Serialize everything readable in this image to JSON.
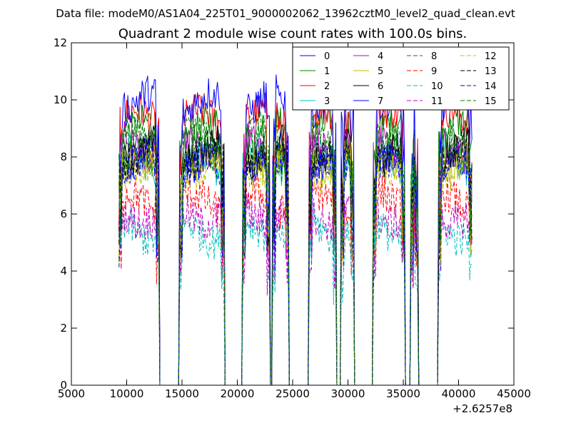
{
  "header": {
    "data_file": "Data file: modeM0/AS1A04_225T01_9000002062_13962cztM0_level2_quad_clean.evt"
  },
  "chart_data": {
    "type": "line",
    "title": "Quadrant 2 module wise count rates with 100.0s bins.",
    "xlabel": "",
    "ylabel": "",
    "xlim": [
      5000,
      45000
    ],
    "ylim": [
      0,
      12
    ],
    "x_ticks": [
      5000,
      10000,
      15000,
      20000,
      25000,
      30000,
      35000,
      40000,
      45000
    ],
    "x_tick_labels": [
      "5000",
      "10000",
      "15000",
      "20000",
      "25000",
      "30000",
      "35000",
      "40000",
      "45000"
    ],
    "y_ticks": [
      0,
      2,
      4,
      6,
      8,
      10,
      12
    ],
    "y_tick_labels": [
      "0",
      "2",
      "4",
      "6",
      "8",
      "10",
      "12"
    ],
    "x_offset_label": "+2.6257e8",
    "bin_seconds": 100,
    "x_start": 9300,
    "x_end": 41200,
    "good_time_intervals": [
      [
        9300,
        12900
      ],
      [
        14800,
        18800
      ],
      [
        20500,
        22900
      ],
      [
        23200,
        24600
      ],
      [
        26500,
        28900
      ],
      [
        29400,
        30500
      ],
      [
        32300,
        35100
      ],
      [
        35700,
        36300
      ],
      [
        38200,
        41200
      ]
    ],
    "series": [
      {
        "name": "0",
        "color": "#0000ff",
        "dash": "solid",
        "mean_rate": 8.0
      },
      {
        "name": "1",
        "color": "#008000",
        "dash": "solid",
        "mean_rate": 8.9
      },
      {
        "name": "2",
        "color": "#ff0000",
        "dash": "solid",
        "mean_rate": 9.3
      },
      {
        "name": "3",
        "color": "#00bfbf",
        "dash": "solid",
        "mean_rate": 7.9
      },
      {
        "name": "4",
        "color": "#bf00bf",
        "dash": "solid",
        "mean_rate": 8.4
      },
      {
        "name": "5",
        "color": "#bfbf00",
        "dash": "solid",
        "mean_rate": 8.0
      },
      {
        "name": "6",
        "color": "#000000",
        "dash": "solid",
        "mean_rate": 8.2
      },
      {
        "name": "7",
        "color": "#0000ff",
        "dash": "solid",
        "mean_rate": 9.9
      },
      {
        "name": "8",
        "color": "#008000",
        "dash": "dashed",
        "mean_rate": 7.8
      },
      {
        "name": "9",
        "color": "#ff0000",
        "dash": "dashed",
        "mean_rate": 6.4
      },
      {
        "name": "10",
        "color": "#00bfbf",
        "dash": "dashed",
        "mean_rate": 5.4
      },
      {
        "name": "11",
        "color": "#bf00bf",
        "dash": "dashed",
        "mean_rate": 6.0
      },
      {
        "name": "12",
        "color": "#bfbf00",
        "dash": "dashed",
        "mean_rate": 7.7
      },
      {
        "name": "13",
        "color": "#000000",
        "dash": "dashed",
        "mean_rate": 8.1
      },
      {
        "name": "14",
        "color": "#0000ff",
        "dash": "dashed",
        "mean_rate": 7.6
      },
      {
        "name": "15",
        "color": "#008000",
        "dash": "dashed",
        "mean_rate": 8.6
      }
    ],
    "legend": {
      "position": "top-right",
      "columns": 4
    }
  }
}
